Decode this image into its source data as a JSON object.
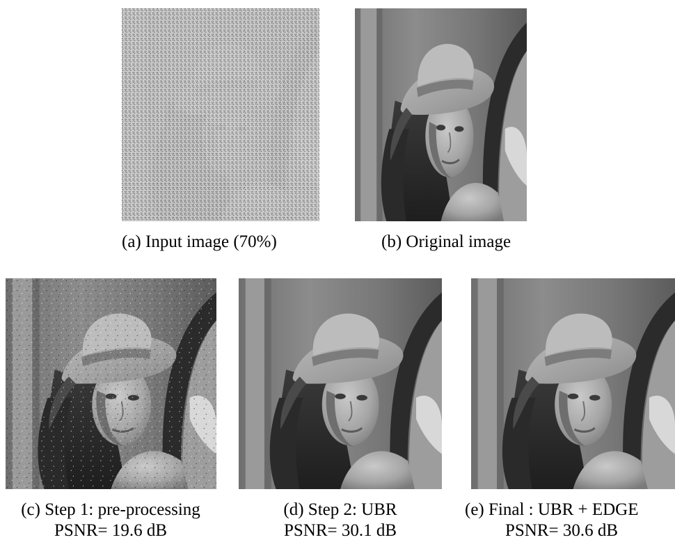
{
  "figure": {
    "panels": [
      {
        "id": "a",
        "caption": "(a) Input image (70%)",
        "psnr": ""
      },
      {
        "id": "b",
        "caption": "(b) Original image",
        "psnr": ""
      },
      {
        "id": "c",
        "caption": "(c) Step 1: pre-processing",
        "psnr": "PSNR= 19.6 dB"
      },
      {
        "id": "d",
        "caption": "(d) Step 2: UBR",
        "psnr": "PSNR= 30.1 dB"
      },
      {
        "id": "e",
        "caption": "(e) Final : UBR + EDGE",
        "psnr": "PSNR= 30.6 dB"
      }
    ]
  },
  "colors": {
    "background": "#ffffff",
    "text": "#000000"
  }
}
